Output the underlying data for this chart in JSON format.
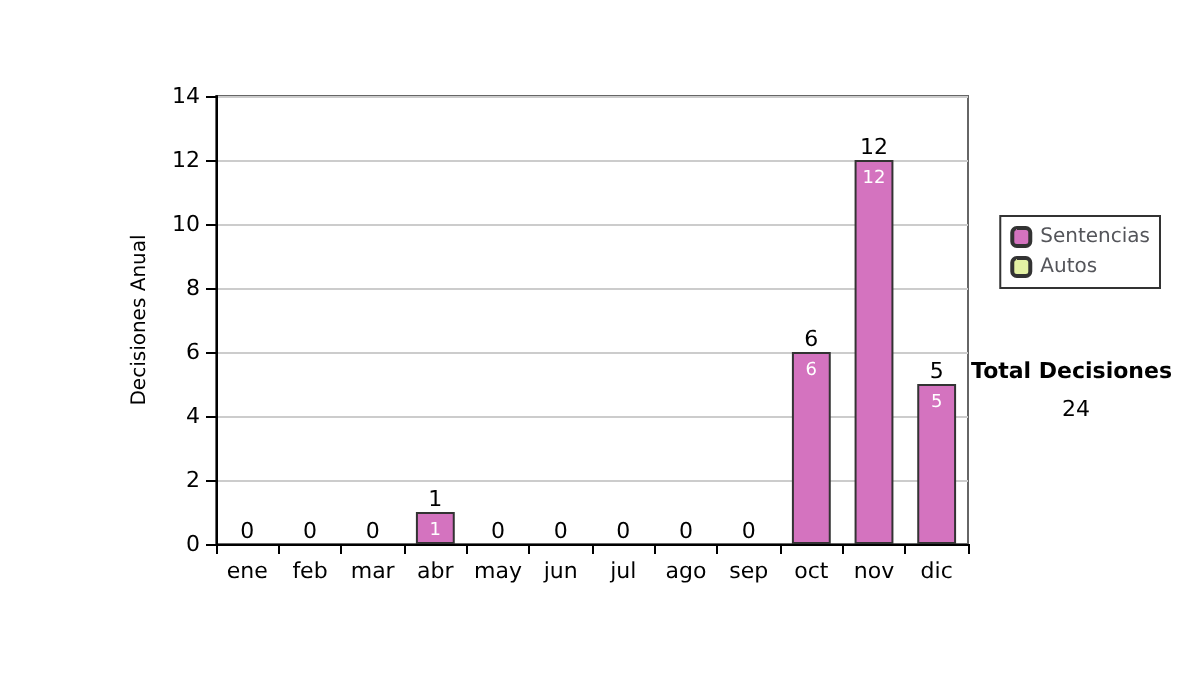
{
  "chart_data": {
    "type": "bar",
    "ylabel": "Decisiones Anual",
    "categories": [
      "ene",
      "feb",
      "mar",
      "abr",
      "may",
      "jun",
      "jul",
      "ago",
      "sep",
      "oct",
      "nov",
      "dic"
    ],
    "series": [
      {
        "name": "Sentencias",
        "color": "#d473bf",
        "values": [
          0,
          0,
          0,
          1,
          0,
          0,
          0,
          0,
          0,
          6,
          12,
          5
        ],
        "value_labels": [
          null,
          null,
          null,
          "1",
          null,
          null,
          null,
          null,
          null,
          "6",
          "12",
          "5"
        ]
      },
      {
        "name": "Autos",
        "color": "#e4f2a4",
        "values": [
          0,
          0,
          0,
          0,
          0,
          0,
          0,
          0,
          0,
          0,
          0,
          0
        ]
      }
    ],
    "stacked": true,
    "totals": [
      "0",
      "0",
      "0",
      "1",
      "0",
      "0",
      "0",
      "0",
      "0",
      "6",
      "12",
      "5"
    ],
    "ylim": [
      0,
      14
    ],
    "yticks": [
      0,
      2,
      4,
      6,
      8,
      10,
      12,
      14
    ],
    "grid": "y",
    "legend": "right",
    "annotations": [
      "Total Decisiones",
      "24"
    ]
  }
}
